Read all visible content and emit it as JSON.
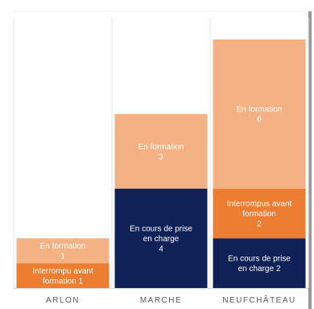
{
  "chart_data": {
    "type": "bar",
    "stacked": true,
    "categories": [
      "ARLON",
      "MARCHE",
      "NEUFCHÂTEAU"
    ],
    "ylim": [
      0,
      11
    ],
    "grid": false,
    "series": [
      {
        "color": "#0f2156",
        "label_color": "#ffffff",
        "values": [
          0,
          4,
          2
        ],
        "labels": [
          null,
          [
            "En cours de prise",
            "en charge",
            "4"
          ],
          [
            "En cours de prise",
            "en charge 2"
          ]
        ]
      },
      {
        "color": "#ed7d31",
        "label_color": "#ffffff",
        "values": [
          1,
          0,
          2
        ],
        "labels": [
          [
            "Interrompu avant",
            "formation  1"
          ],
          null,
          [
            "Interrompus avant",
            "formation",
            "2"
          ]
        ]
      },
      {
        "color": "#f4b183",
        "label_color": "#ffffff",
        "values": [
          1,
          3,
          6
        ],
        "labels": [
          [
            "En formation",
            "1"
          ],
          [
            "En formation",
            "3"
          ],
          [
            "En formation",
            "6"
          ]
        ]
      }
    ]
  },
  "colors": {
    "category_text": "#595959",
    "column_separator": "#e6e6e6",
    "axis_line": "#d9d9d9",
    "frame_shadow": "#9a9a9a"
  }
}
